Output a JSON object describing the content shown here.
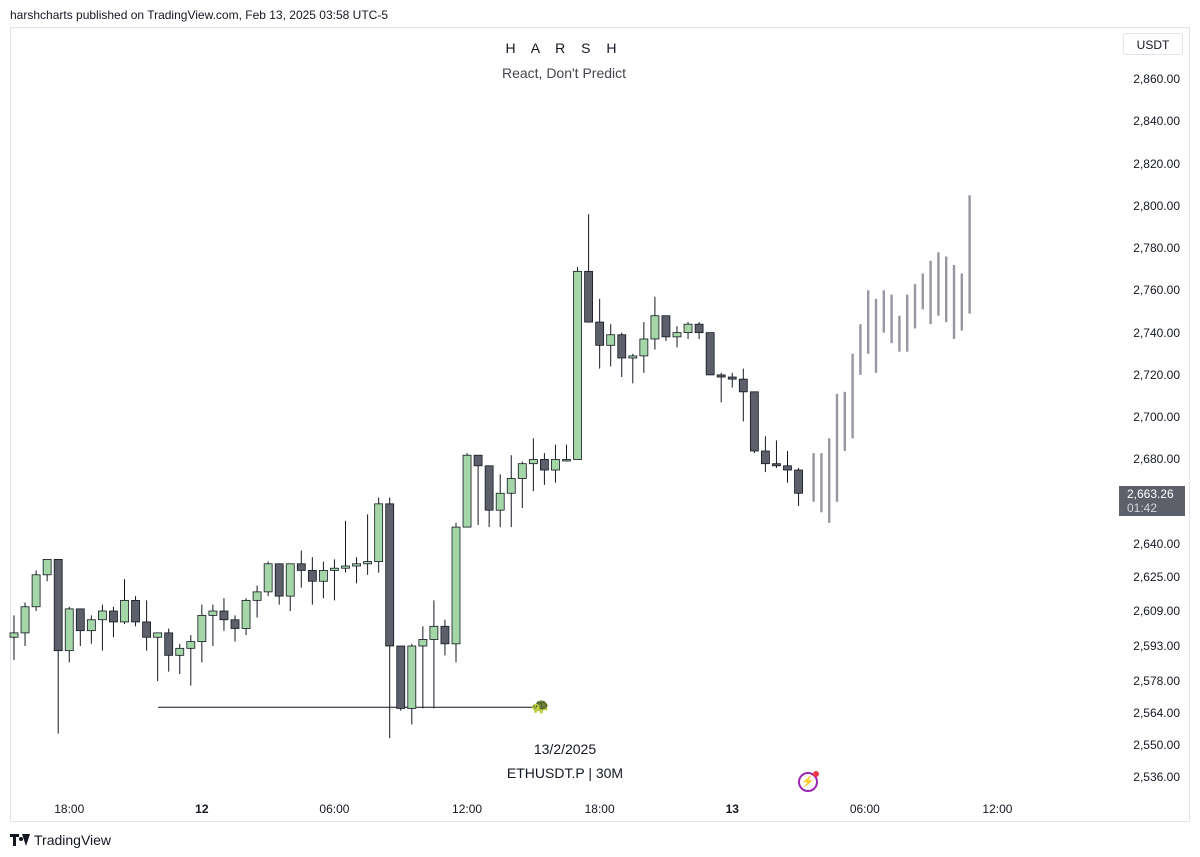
{
  "header": {
    "published_line": "harshcharts published on TradingView.com, Feb 13, 2025 03:58 UTC-5"
  },
  "chart_data": {
    "type": "candlestick",
    "title": "H A R S H",
    "subtitle": "React, Don't Predict",
    "symbol_label": "ETHUSDT.P | 30M",
    "date_label": "13/2/2025",
    "currency": "USDT",
    "last_price": "2,663.26",
    "countdown": "01:42",
    "y_ticks": [
      "2,860.00",
      "2,840.00",
      "2,820.00",
      "2,800.00",
      "2,780.00",
      "2,760.00",
      "2,740.00",
      "2,720.00",
      "2,700.00",
      "2,680.00",
      "2,660.00",
      "2,640.00",
      "2,625.00",
      "2,609.00",
      "2,593.00",
      "2,578.00",
      "2,564.00",
      "2,550.00",
      "2,536.00"
    ],
    "x_ticks": [
      {
        "label": "18:00",
        "bold": false
      },
      {
        "label": "12",
        "bold": true
      },
      {
        "label": "06:00",
        "bold": false
      },
      {
        "label": "12:00",
        "bold": false
      },
      {
        "label": "18:00",
        "bold": false
      },
      {
        "label": "13",
        "bold": true
      },
      {
        "label": "06:00",
        "bold": false
      },
      {
        "label": "12:00",
        "bold": false
      }
    ],
    "x_tick_bar_index": [
      5,
      17,
      29,
      41,
      53,
      65,
      77,
      89
    ],
    "horizontal_level": {
      "price": 2566.5,
      "from_bar": 13,
      "to_bar": 47
    },
    "candles": [
      [
        2597,
        2607,
        2587,
        2599
      ],
      [
        2599,
        2613,
        2593,
        2611
      ],
      [
        2611,
        2628,
        2609,
        2626
      ],
      [
        2626,
        2633,
        2623,
        2633
      ],
      [
        2633,
        2633,
        2555,
        2591
      ],
      [
        2591,
        2611,
        2586,
        2610
      ],
      [
        2610,
        2610,
        2593,
        2600
      ],
      [
        2600,
        2607,
        2594,
        2605
      ],
      [
        2605,
        2612,
        2591,
        2609
      ],
      [
        2609,
        2611,
        2597,
        2604
      ],
      [
        2604,
        2624,
        2603,
        2614
      ],
      [
        2614,
        2616,
        2602,
        2604
      ],
      [
        2604,
        2614,
        2591,
        2597
      ],
      [
        2597,
        2599,
        2578,
        2599
      ],
      [
        2599,
        2601,
        2582,
        2589
      ],
      [
        2589,
        2594,
        2581,
        2592
      ],
      [
        2592,
        2598,
        2576,
        2595
      ],
      [
        2595,
        2612,
        2586,
        2607
      ],
      [
        2607,
        2612,
        2593,
        2609
      ],
      [
        2609,
        2615,
        2600,
        2605
      ],
      [
        2605,
        2607,
        2595,
        2601
      ],
      [
        2601,
        2615,
        2598,
        2614
      ],
      [
        2614,
        2621,
        2606,
        2618
      ],
      [
        2618,
        2632,
        2616,
        2631
      ],
      [
        2631,
        2631,
        2612,
        2616
      ],
      [
        2616,
        2631,
        2609,
        2631
      ],
      [
        2631,
        2637,
        2620,
        2628
      ],
      [
        2628,
        2634,
        2612,
        2623
      ],
      [
        2623,
        2632,
        2615,
        2628
      ],
      [
        2628,
        2633,
        2614,
        2629
      ],
      [
        2629,
        2651,
        2627,
        2630
      ],
      [
        2630,
        2634,
        2622,
        2631
      ],
      [
        2631,
        2654,
        2626,
        2632
      ],
      [
        2632,
        2662,
        2627,
        2659
      ],
      [
        2659,
        2662,
        2553,
        2593
      ],
      [
        2593,
        2593,
        2565,
        2566
      ],
      [
        2566,
        2594,
        2559,
        2593
      ],
      [
        2593,
        2602,
        2566,
        2596
      ],
      [
        2596,
        2614,
        2566,
        2602
      ],
      [
        2602,
        2605,
        2589,
        2594
      ],
      [
        2594,
        2650,
        2586,
        2648
      ],
      [
        2648,
        2683,
        2648,
        2682
      ],
      [
        2682,
        2682,
        2649,
        2677
      ],
      [
        2677,
        2677,
        2648,
        2656
      ],
      [
        2656,
        2673,
        2648,
        2664
      ],
      [
        2664,
        2682,
        2648,
        2671
      ],
      [
        2671,
        2679,
        2657,
        2678
      ],
      [
        2678,
        2690,
        2665,
        2680
      ],
      [
        2680,
        2683,
        2668,
        2675
      ],
      [
        2675,
        2687,
        2669,
        2680
      ],
      [
        2680,
        2687,
        2679,
        2680
      ],
      [
        2680,
        2771,
        2680,
        2769
      ],
      [
        2769,
        2796,
        2745,
        2745
      ],
      [
        2745,
        2756,
        2723,
        2734
      ],
      [
        2734,
        2744,
        2724,
        2739
      ],
      [
        2739,
        2740,
        2719,
        2728
      ],
      [
        2728,
        2730,
        2716,
        2729
      ],
      [
        2729,
        2745,
        2721,
        2737
      ],
      [
        2737,
        2757,
        2732,
        2748
      ],
      [
        2748,
        2748,
        2736,
        2738
      ],
      [
        2738,
        2743,
        2733,
        2740
      ],
      [
        2740,
        2745,
        2737,
        2744
      ],
      [
        2744,
        2745,
        2737,
        2740
      ],
      [
        2740,
        2740,
        2722,
        2720
      ],
      [
        2720,
        2721,
        2707,
        2719
      ],
      [
        2719,
        2721,
        2714,
        2718
      ],
      [
        2718,
        2723,
        2698,
        2712
      ],
      [
        2712,
        2712,
        2683,
        2684
      ],
      [
        2684,
        2691,
        2674,
        2678
      ],
      [
        2678,
        2689,
        2676,
        2677
      ],
      [
        2677,
        2684,
        2669,
        2675
      ],
      [
        2675,
        2676,
        2658,
        2664
      ]
    ],
    "projection_bars": [
      [
        2683,
        2660
      ],
      [
        2683,
        2655
      ],
      [
        2690,
        2650
      ],
      [
        2711,
        2660
      ],
      [
        2712,
        2684
      ],
      [
        2730,
        2690
      ],
      [
        2744,
        2720
      ],
      [
        2760,
        2730
      ],
      [
        2756,
        2721
      ],
      [
        2760,
        2740
      ],
      [
        2758,
        2735
      ],
      [
        2748,
        2731
      ],
      [
        2758,
        2731
      ],
      [
        2763,
        2742
      ],
      [
        2768,
        2751
      ],
      [
        2774,
        2744
      ],
      [
        2778,
        2748
      ],
      [
        2776,
        2745
      ],
      [
        2772,
        2737
      ],
      [
        2768,
        2741
      ],
      [
        2805,
        2749
      ]
    ],
    "colors": {
      "up": "#a5d6a7",
      "down": "#5d606b",
      "border": "#131722",
      "projection": "#9598a1"
    }
  },
  "icons": {
    "turtle": "turtle-icon",
    "flash": "flash-icon"
  },
  "footer": {
    "brand": "TradingView"
  }
}
